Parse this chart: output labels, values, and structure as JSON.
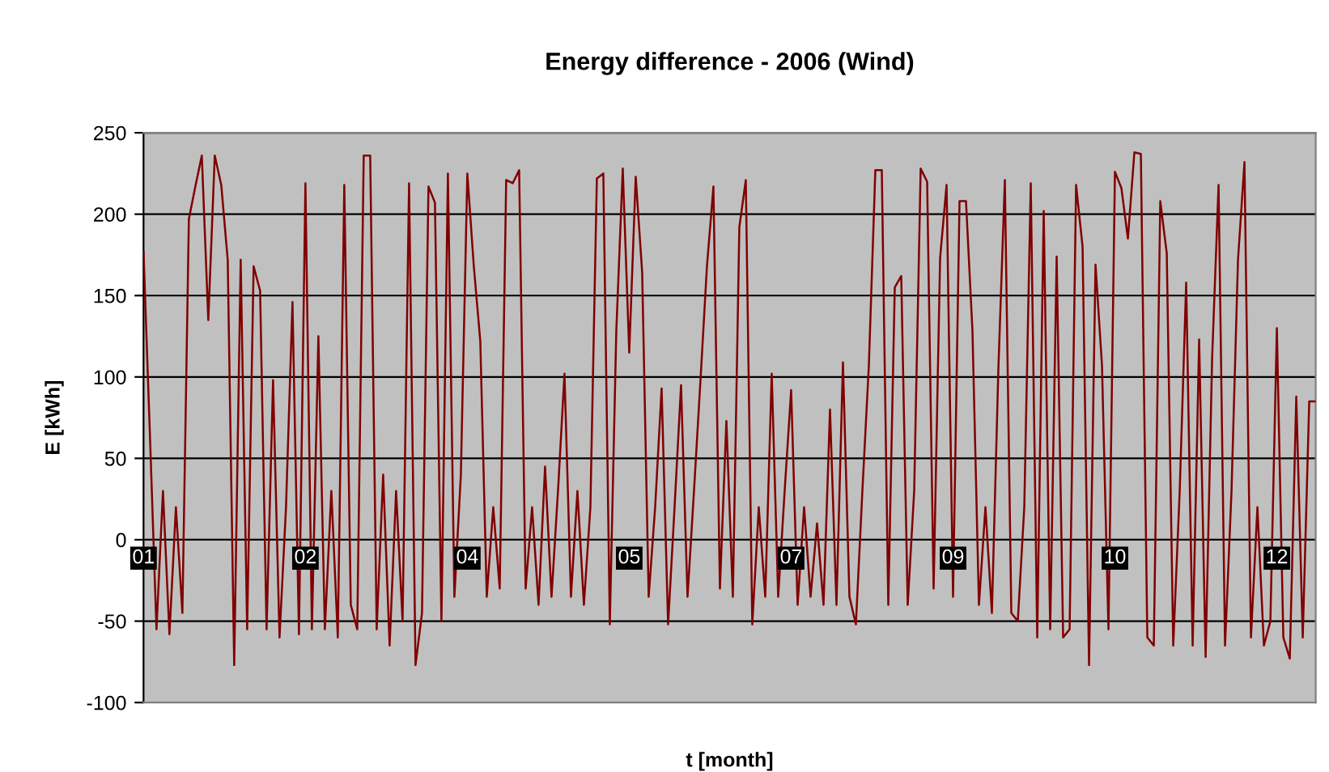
{
  "chart_data": {
    "type": "line",
    "title": "Energy difference - 2006 (Wind)",
    "xlabel": "t [month]",
    "ylabel": "E [kWh]",
    "categories": [
      "01",
      null,
      null,
      null,
      null,
      null,
      null,
      null,
      null,
      null,
      null,
      null,
      null,
      null,
      null,
      null,
      null,
      null,
      null,
      null,
      null,
      null,
      null,
      null,
      null,
      "02",
      null,
      null,
      null,
      null,
      null,
      null,
      null,
      null,
      null,
      null,
      null,
      null,
      null,
      null,
      null,
      null,
      null,
      null,
      null,
      null,
      null,
      null,
      null,
      null,
      "04",
      null,
      null,
      null,
      null,
      null,
      null,
      null,
      null,
      null,
      null,
      null,
      null,
      null,
      null,
      null,
      null,
      null,
      null,
      null,
      null,
      null,
      null,
      null,
      null,
      "05",
      null,
      null,
      null,
      null,
      null,
      null,
      null,
      null,
      null,
      null,
      null,
      null,
      null,
      null,
      null,
      null,
      null,
      null,
      null,
      null,
      null,
      null,
      null,
      null,
      "07",
      null,
      null,
      null,
      null,
      null,
      null,
      null,
      null,
      null,
      null,
      null,
      null,
      null,
      null,
      null,
      null,
      null,
      null,
      null,
      null,
      null,
      null,
      null,
      null,
      "09",
      null,
      null,
      null,
      null,
      null,
      null,
      null,
      null,
      null,
      null,
      null,
      null,
      null,
      null,
      null,
      null,
      null,
      null,
      null,
      null,
      null,
      null,
      null,
      null,
      "10",
      null,
      null,
      null,
      null,
      null,
      null,
      null,
      null,
      null,
      null,
      null,
      null,
      null,
      null,
      null,
      null,
      null,
      null,
      null,
      null,
      null,
      null,
      null,
      null,
      "12",
      null,
      null,
      null,
      null,
      null,
      null
    ],
    "series": [
      {
        "color": "#800000",
        "values": [
          177,
          63,
          -55,
          30,
          -58,
          20,
          -45,
          197,
          217,
          236,
          135,
          236,
          218,
          172,
          -77,
          172,
          -55,
          168,
          153,
          -55,
          98,
          -60,
          20,
          146,
          -58,
          219,
          -55,
          125,
          -55,
          30,
          -60,
          218,
          -40,
          -55,
          236,
          236,
          -55,
          40,
          -65,
          30,
          -50,
          219,
          -77,
          -45,
          217,
          207,
          -50,
          225,
          -35,
          40,
          225,
          168,
          122,
          -35,
          20,
          -30,
          221,
          219,
          227,
          -30,
          20,
          -40,
          45,
          -35,
          30,
          102,
          -35,
          30,
          -40,
          20,
          222,
          225,
          -52,
          128,
          228,
          115,
          223,
          164,
          -35,
          20,
          93,
          -52,
          20,
          95,
          -35,
          30,
          98,
          168,
          217,
          -30,
          73,
          -35,
          192,
          221,
          -52,
          20,
          -35,
          102,
          -35,
          30,
          92,
          -40,
          20,
          -35,
          10,
          -40,
          80,
          -40,
          109,
          -35,
          -52,
          30,
          107,
          227,
          227,
          -40,
          155,
          162,
          -40,
          30,
          228,
          220,
          -30,
          173,
          218,
          -35,
          208,
          208,
          128,
          -40,
          20,
          -45,
          105,
          221,
          -45,
          -50,
          20,
          219,
          -60,
          202,
          -55,
          174,
          -60,
          -55,
          218,
          180,
          -77,
          169,
          107,
          -55,
          226,
          216,
          185,
          238,
          237,
          -60,
          -65,
          208,
          176,
          -65,
          30,
          158,
          -65,
          123,
          -72,
          111,
          218,
          -65,
          30,
          172,
          232,
          -60,
          20,
          -65,
          -50,
          130,
          -60,
          -73,
          88,
          -60,
          85,
          85
        ]
      }
    ],
    "ylim": [
      -100,
      250
    ],
    "yticks": [
      -100,
      -50,
      0,
      50,
      100,
      150,
      200,
      250
    ],
    "grid": "y",
    "marker": "none",
    "line_style": "solid"
  }
}
